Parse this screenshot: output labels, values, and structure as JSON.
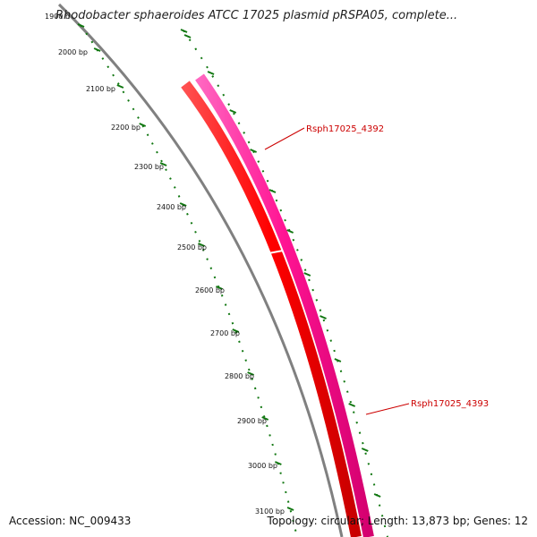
{
  "title": "Rhodobacter sphaeroides ATCC 17025 plasmid pRSPA05, complete...",
  "footer": {
    "accession": "Accession: NC_009433",
    "summary": "Topology: circular; Length: 13,873 bp; Genes: 12"
  },
  "ticks": [
    {
      "bp": 1900,
      "label": "1900 b"
    },
    {
      "bp": 2000,
      "label": "2000 bp"
    },
    {
      "bp": 2100,
      "label": "2100 bp"
    },
    {
      "bp": 2200,
      "label": "2200 bp"
    },
    {
      "bp": 2300,
      "label": "2300 bp"
    },
    {
      "bp": 2400,
      "label": "2400 bp"
    },
    {
      "bp": 2500,
      "label": "2500 bp"
    },
    {
      "bp": 2600,
      "label": "2600 bp"
    },
    {
      "bp": 2700,
      "label": "2700 bp"
    },
    {
      "bp": 2800,
      "label": "2800 bp"
    },
    {
      "bp": 2900,
      "label": "2900 bp"
    },
    {
      "bp": 3000,
      "label": "3000 bp"
    },
    {
      "bp": 3100,
      "label": "3100 bp"
    }
  ],
  "genes": [
    {
      "name": "Rsph17025_4392",
      "color": "#ff1493"
    },
    {
      "name": "Rsph17025_4393",
      "color": "#ff0000"
    }
  ],
  "colors": {
    "backbone": "#808080",
    "tick": "#117711",
    "cds_forward": "#ff1493",
    "cds_reverse": "#ff0000",
    "label": "#cc0000"
  }
}
